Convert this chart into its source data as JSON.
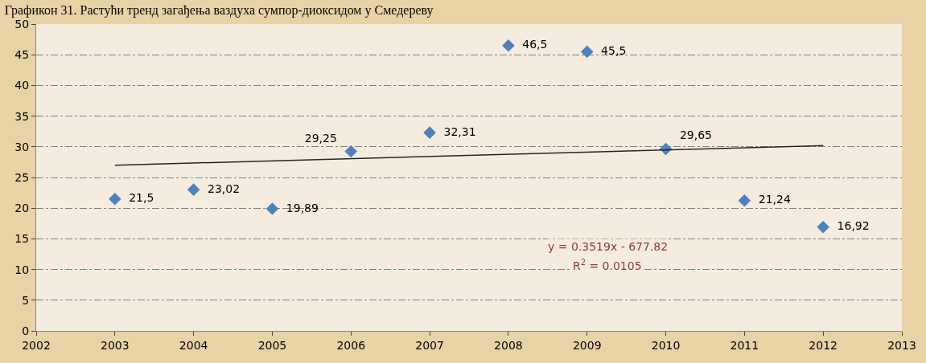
{
  "chart_data": {
    "type": "scatter",
    "title": "Графикон 31. Растући тренд загађења ваздуха сумпор-диоксидом у Смедереву",
    "series": [
      {
        "marker": "diamond",
        "color": "#4f81bd",
        "x": [
          2003,
          2004,
          2005,
          2006,
          2007,
          2008,
          2009,
          2010,
          2011,
          2012
        ],
        "values": [
          21.5,
          23.02,
          19.89,
          29.25,
          32.31,
          46.5,
          45.5,
          29.65,
          21.24,
          16.92
        ],
        "value_labels": [
          "21,5",
          "23,02",
          "19,89",
          "29,25",
          "32,31",
          "46,5",
          "45,5",
          "29,65",
          "21,24",
          "16,92"
        ]
      },
      {
        "type": "line",
        "color": "#262626",
        "x": [
          2003,
          2012
        ],
        "values": [
          27.0,
          30.2
        ],
        "marker": "none"
      }
    ],
    "annotations": [
      "y = 0.3519x - 677.82",
      "R$^{2}$ = 0.0105"
    ],
    "xlim": [
      2002,
      2013
    ],
    "xticks": [
      2002,
      2003,
      2004,
      2005,
      2006,
      2007,
      2008,
      2009,
      2010,
      2011,
      2012,
      2013
    ],
    "ylim": [
      0,
      50
    ],
    "yticks": [
      0,
      5,
      10,
      15,
      20,
      25,
      30,
      35,
      40,
      45,
      50
    ],
    "grid": "y"
  }
}
